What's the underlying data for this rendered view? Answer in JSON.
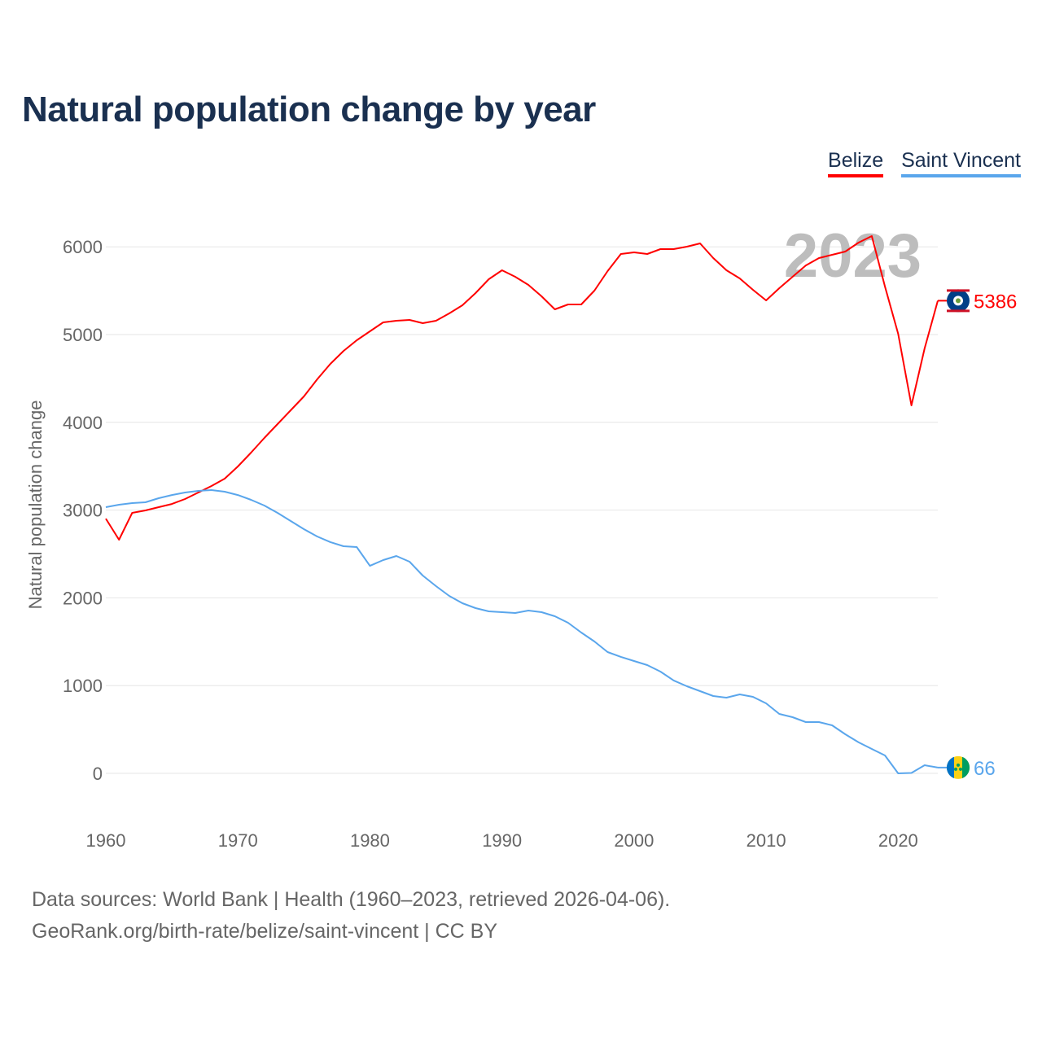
{
  "title": "Natural population change by year",
  "legend": [
    {
      "label": "Belize",
      "color": "#ff0000"
    },
    {
      "label": "Saint Vincent",
      "color": "#5aa6ec"
    }
  ],
  "source": {
    "line1": "Data sources: World Bank | Health (1960–2023, retrieved 2026-04-06).",
    "line2": "GeoRank.org/birth-rate/belize/saint-vincent | CC BY"
  },
  "chart_data": {
    "type": "line",
    "title": "Natural population change by year",
    "xlabel": "",
    "ylabel": "Natural population change",
    "year_label": "2023",
    "xlim": [
      1960,
      2023
    ],
    "ylim": [
      -500,
      6500
    ],
    "x_ticks": [
      "1960",
      "1970",
      "1980",
      "1990",
      "2000",
      "2010",
      "2020"
    ],
    "y_ticks": [
      "0",
      "1000",
      "2000",
      "3000",
      "4000",
      "5000",
      "6000"
    ],
    "grid": true,
    "legend_position": "top-right",
    "x": [
      1960,
      1961,
      1962,
      1963,
      1964,
      1965,
      1966,
      1967,
      1968,
      1969,
      1970,
      1971,
      1972,
      1973,
      1974,
      1975,
      1976,
      1977,
      1978,
      1979,
      1980,
      1981,
      1982,
      1983,
      1984,
      1985,
      1986,
      1987,
      1988,
      1989,
      1990,
      1991,
      1992,
      1993,
      1994,
      1995,
      1996,
      1997,
      1998,
      1999,
      2000,
      2001,
      2002,
      2003,
      2004,
      2005,
      2006,
      2007,
      2008,
      2009,
      2010,
      2011,
      2012,
      2013,
      2014,
      2015,
      2016,
      2017,
      2018,
      2019,
      2020,
      2021,
      2022,
      2023
    ],
    "series": [
      {
        "name": "Belize",
        "color": "#ff0000",
        "end_label": "5386",
        "values": [
          2903,
          2662,
          2968,
          2996,
          3033,
          3070,
          3126,
          3200,
          3275,
          3358,
          3497,
          3655,
          3822,
          3980,
          4137,
          4295,
          4490,
          4666,
          4814,
          4935,
          5037,
          5139,
          5158,
          5167,
          5130,
          5158,
          5241,
          5334,
          5473,
          5631,
          5733,
          5659,
          5566,
          5436,
          5288,
          5343,
          5343,
          5501,
          5724,
          5918,
          5937,
          5918,
          5974,
          5974,
          6002,
          6039,
          5872,
          5733,
          5640,
          5510,
          5390,
          5529,
          5659,
          5788,
          5872,
          5909,
          5946,
          6048,
          6122,
          5547,
          5009,
          4193,
          4842,
          5386
        ]
      },
      {
        "name": "Saint Vincent",
        "color": "#5aa6ec",
        "end_label": "66",
        "values": [
          3033,
          3061,
          3080,
          3089,
          3135,
          3172,
          3200,
          3219,
          3228,
          3210,
          3172,
          3117,
          3052,
          2968,
          2876,
          2783,
          2699,
          2635,
          2588,
          2579,
          2365,
          2430,
          2477,
          2412,
          2254,
          2134,
          2022,
          1939,
          1883,
          1846,
          1837,
          1827,
          1855,
          1837,
          1790,
          1716,
          1605,
          1503,
          1382,
          1327,
          1280,
          1234,
          1160,
          1058,
          993,
          937,
          881,
          863,
          900,
          872,
          798,
          677,
          640,
          584,
          584,
          547,
          445,
          353,
          278,
          204,
          0,
          5,
          93,
          66
        ]
      }
    ]
  }
}
